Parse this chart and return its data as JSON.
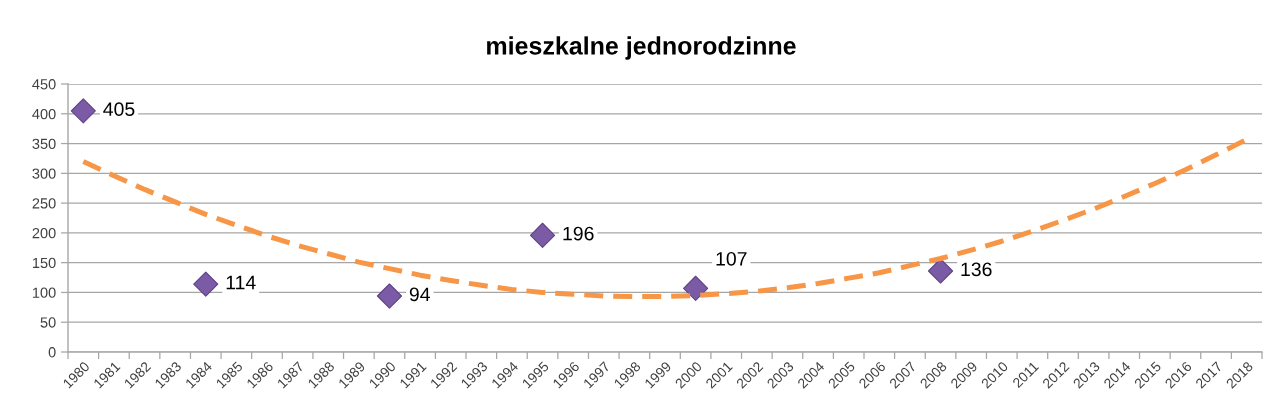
{
  "chart_data": {
    "type": "line",
    "title": "mieszkalne jednorodzinne",
    "categories": [
      "1980",
      "1981",
      "1982",
      "1983",
      "1984",
      "1985",
      "1986",
      "1987",
      "1988",
      "1989",
      "1990",
      "1991",
      "1992",
      "1993",
      "1994",
      "1995",
      "1996",
      "1997",
      "1998",
      "1999",
      "2000",
      "2001",
      "2002",
      "2003",
      "2004",
      "2005",
      "2006",
      "2007",
      "2008",
      "2009",
      "2010",
      "2011",
      "2012",
      "2013",
      "2014",
      "2015",
      "2016",
      "2017",
      "2018"
    ],
    "series": [
      {
        "type": "scatter",
        "color": "#7b5aa6",
        "marker": "diamond",
        "values": [
          405,
          null,
          null,
          null,
          114,
          null,
          null,
          null,
          null,
          null,
          94,
          null,
          null,
          null,
          null,
          196,
          null,
          null,
          null,
          null,
          107,
          null,
          null,
          null,
          null,
          null,
          null,
          null,
          136,
          null,
          null,
          null,
          null,
          null,
          null,
          null,
          null,
          null,
          null
        ],
        "value_labels": [
          "405",
          null,
          null,
          null,
          "114",
          null,
          null,
          null,
          null,
          null,
          "94",
          null,
          null,
          null,
          null,
          "196",
          null,
          null,
          null,
          null,
          "107",
          null,
          null,
          null,
          null,
          null,
          null,
          null,
          "136",
          null,
          null,
          null,
          null,
          null,
          null,
          null,
          null,
          null,
          null
        ]
      },
      {
        "color": "#f79646",
        "line_style": "dashed",
        "marker": "none",
        "values": [
          320,
          296,
          273,
          252,
          231,
          213,
          195,
          179,
          165,
          151,
          140,
          129,
          120,
          112,
          105,
          100,
          97,
          94,
          93,
          93,
          95,
          98,
          102,
          108,
          115,
          124,
          133,
          145,
          157,
          171,
          186,
          203,
          221,
          240,
          261,
          283,
          306,
          331,
          357
        ]
      }
    ],
    "ylim": [
      0,
      450
    ],
    "yticks": [
      0,
      50,
      100,
      150,
      200,
      250,
      300,
      350,
      400,
      450
    ],
    "grid": "y"
  }
}
